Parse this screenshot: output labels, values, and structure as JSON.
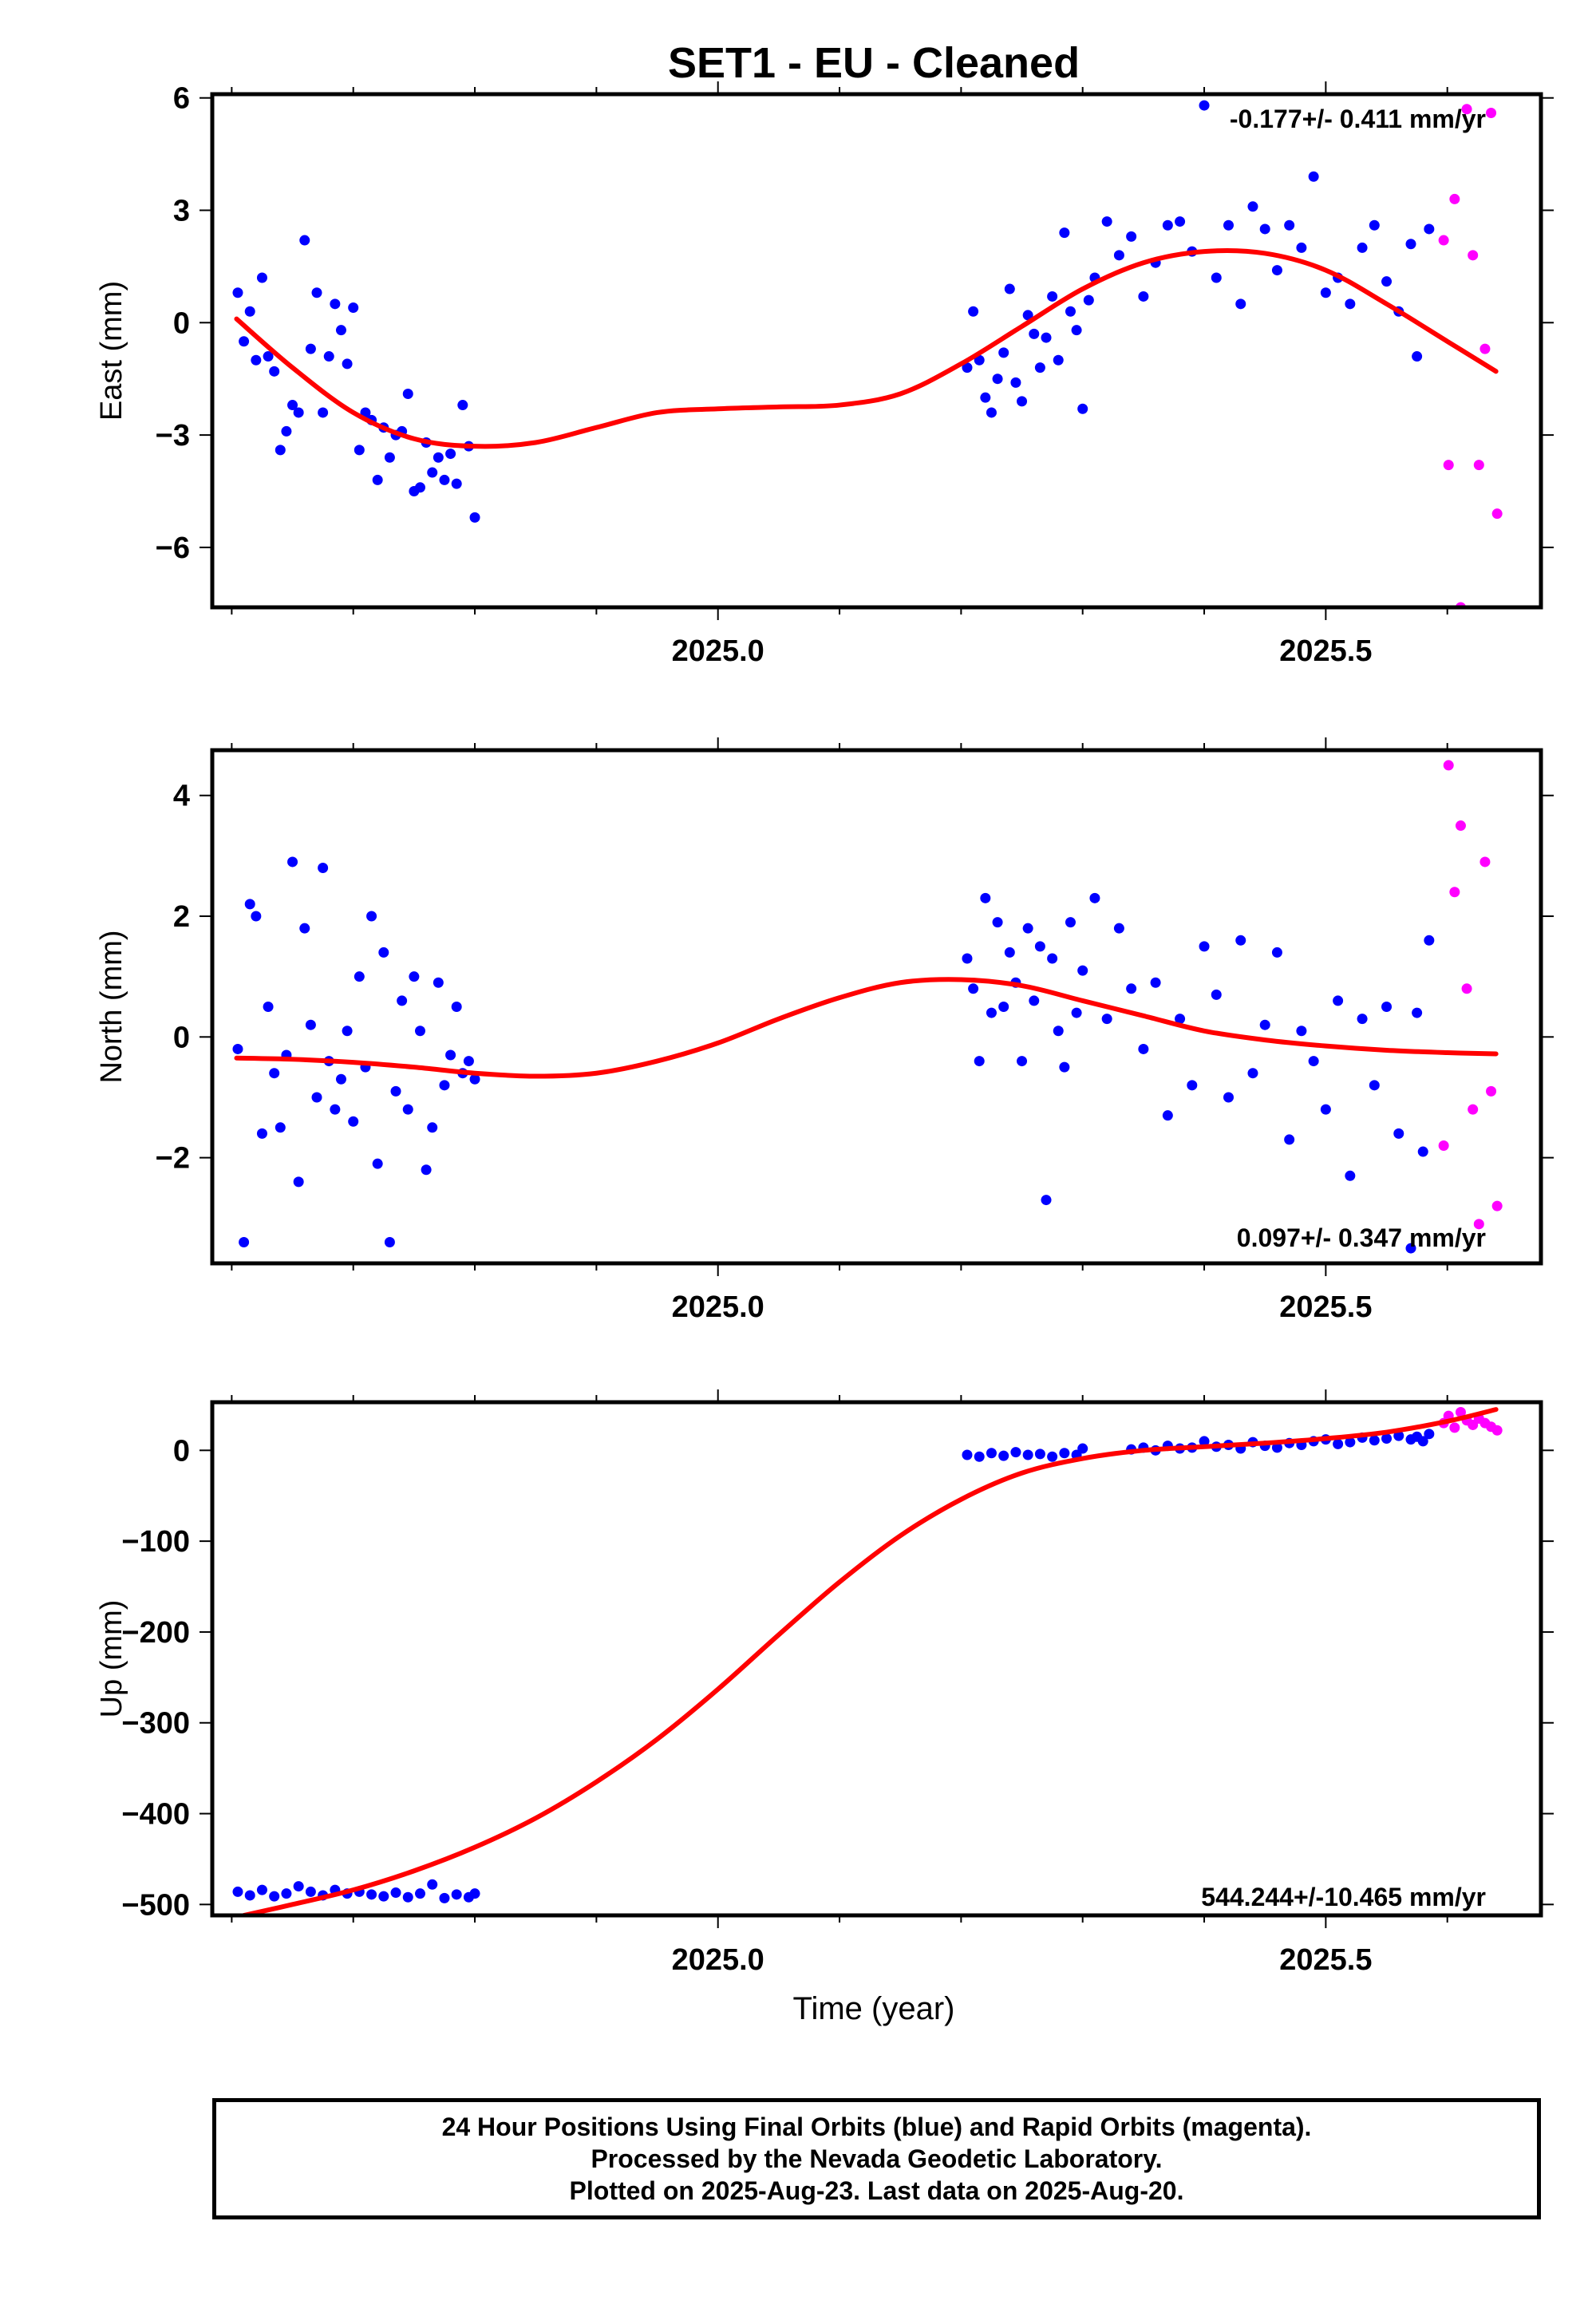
{
  "figure_title": "SET1  - EU - Cleaned",
  "xlabel": "Time (year)",
  "footer": {
    "line1": "24 Hour Positions Using Final Orbits (blue) and Rapid Orbits (magenta).",
    "line2": "Processed by the Nevada Geodetic Laboratory.",
    "line3": "Plotted on 2025-Aug-23. Last data on 2025-Aug-20."
  },
  "colors": {
    "final": "#0000ff",
    "rapid": "#ff00ff",
    "fit": "#ff0000",
    "frame": "#000000"
  },
  "chart_data": [
    {
      "type": "scatter",
      "name": "east",
      "ylabel": "East (mm)",
      "rate_text": "-0.177+/- 0.411 mm/yr",
      "xlim": [
        2024.584,
        2025.677
      ],
      "ylim": [
        -7.6,
        6.1
      ],
      "xticks": [
        "2025.0",
        "2025.5"
      ],
      "yticks": [
        "6",
        "3",
        "0",
        "−3",
        "−6"
      ],
      "ytick_values": [
        6,
        3,
        0,
        -3,
        -6
      ],
      "fit_curve": {
        "x": [
          2024.604,
          2024.65,
          2024.7,
          2024.75,
          2024.8,
          2024.85,
          2024.9,
          2024.95,
          2025.0,
          2025.05,
          2025.1,
          2025.15,
          2025.2,
          2025.25,
          2025.3,
          2025.35,
          2025.4,
          2025.45,
          2025.5,
          2025.55,
          2025.6,
          2025.64
        ],
        "y": [
          0.1,
          -1.2,
          -2.4,
          -3.1,
          -3.3,
          -3.2,
          -2.8,
          -2.4,
          -2.3,
          -2.25,
          -2.2,
          -1.9,
          -1.1,
          -0.1,
          0.9,
          1.6,
          1.9,
          1.85,
          1.4,
          0.5,
          -0.5,
          -1.3
        ]
      },
      "final": {
        "x": [
          2024.605,
          2024.61,
          2024.615,
          2024.62,
          2024.625,
          2024.63,
          2024.635,
          2024.64,
          2024.645,
          2024.65,
          2024.655,
          2024.66,
          2024.665,
          2024.67,
          2024.675,
          2024.68,
          2024.685,
          2024.69,
          2024.695,
          2024.7,
          2024.705,
          2024.71,
          2024.715,
          2024.72,
          2024.725,
          2024.73,
          2024.735,
          2024.74,
          2024.745,
          2024.75,
          2024.755,
          2024.76,
          2024.765,
          2024.77,
          2024.775,
          2024.78,
          2024.785,
          2024.79,
          2024.795,
          2024.8,
          2025.205,
          2025.21,
          2025.215,
          2025.22,
          2025.225,
          2025.23,
          2025.235,
          2025.24,
          2025.245,
          2025.25,
          2025.255,
          2025.26,
          2025.265,
          2025.27,
          2025.275,
          2025.28,
          2025.285,
          2025.29,
          2025.295,
          2025.3,
          2025.305,
          2025.31,
          2025.32,
          2025.33,
          2025.34,
          2025.35,
          2025.36,
          2025.37,
          2025.38,
          2025.39,
          2025.4,
          2025.41,
          2025.42,
          2025.43,
          2025.44,
          2025.45,
          2025.46,
          2025.47,
          2025.48,
          2025.49,
          2025.5,
          2025.51,
          2025.52,
          2025.53,
          2025.54,
          2025.55,
          2025.56,
          2025.57,
          2025.575,
          2025.585
        ],
        "y": [
          0.8,
          -0.5,
          0.3,
          -1.0,
          1.2,
          -0.9,
          -1.3,
          -3.4,
          -2.9,
          -2.2,
          -2.4,
          2.2,
          -0.7,
          0.8,
          -2.4,
          -0.9,
          0.5,
          -0.2,
          -1.1,
          0.4,
          -3.4,
          -2.4,
          -2.6,
          -4.2,
          -2.8,
          -3.6,
          -3.0,
          -2.9,
          -1.9,
          -4.5,
          -4.4,
          -3.2,
          -4.0,
          -3.6,
          -4.2,
          -3.5,
          -4.3,
          -2.2,
          -3.3,
          -5.2,
          -1.2,
          0.3,
          -1.0,
          -2.0,
          -2.4,
          -1.5,
          -0.8,
          0.9,
          -1.6,
          -2.1,
          0.2,
          -0.3,
          -1.2,
          -0.4,
          0.7,
          -1.0,
          2.4,
          0.3,
          -0.2,
          -2.3,
          0.6,
          1.2,
          2.7,
          1.8,
          2.3,
          0.7,
          1.6,
          2.6,
          2.7,
          1.9,
          5.8,
          1.2,
          2.6,
          0.5,
          3.1,
          2.5,
          1.4,
          2.6,
          2.0,
          3.9,
          0.8,
          1.2,
          0.5,
          2.0,
          2.6,
          1.1,
          0.3,
          2.1,
          -0.9,
          2.5
        ]
      },
      "rapid": {
        "x": [
          2025.597,
          2025.601,
          2025.606,
          2025.611,
          2025.616,
          2025.621,
          2025.626,
          2025.631,
          2025.636,
          2025.641
        ],
        "y": [
          2.2,
          -3.8,
          3.3,
          -7.6,
          5.7,
          1.8,
          -3.8,
          -0.7,
          5.6,
          -5.1
        ]
      }
    },
    {
      "type": "scatter",
      "name": "north",
      "ylabel": "North (mm)",
      "rate_text": "0.097+/- 0.347 mm/yr",
      "xlim": [
        2024.584,
        2025.677
      ],
      "ylim": [
        -3.75,
        4.75
      ],
      "xticks": [
        "2025.0",
        "2025.5"
      ],
      "yticks": [
        "4",
        "2",
        "0",
        "−2"
      ],
      "ytick_values": [
        4,
        2,
        0,
        -2
      ],
      "fit_curve": {
        "x": [
          2024.604,
          2024.65,
          2024.7,
          2024.75,
          2024.8,
          2024.85,
          2024.9,
          2024.95,
          2025.0,
          2025.05,
          2025.1,
          2025.15,
          2025.2,
          2025.25,
          2025.3,
          2025.35,
          2025.4,
          2025.45,
          2025.5,
          2025.55,
          2025.6,
          2025.64
        ],
        "y": [
          -0.35,
          -0.37,
          -0.42,
          -0.5,
          -0.6,
          -0.65,
          -0.6,
          -0.4,
          -0.1,
          0.3,
          0.65,
          0.9,
          0.95,
          0.85,
          0.6,
          0.35,
          0.1,
          -0.05,
          -0.15,
          -0.22,
          -0.26,
          -0.28
        ]
      },
      "final": {
        "x": [
          2024.605,
          2024.61,
          2024.615,
          2024.62,
          2024.625,
          2024.63,
          2024.635,
          2024.64,
          2024.645,
          2024.65,
          2024.655,
          2024.66,
          2024.665,
          2024.67,
          2024.675,
          2024.68,
          2024.685,
          2024.69,
          2024.695,
          2024.7,
          2024.705,
          2024.71,
          2024.715,
          2024.72,
          2024.725,
          2024.73,
          2024.735,
          2024.74,
          2024.745,
          2024.75,
          2024.755,
          2024.76,
          2024.765,
          2024.77,
          2024.775,
          2024.78,
          2024.785,
          2024.79,
          2024.795,
          2024.8,
          2025.205,
          2025.21,
          2025.215,
          2025.22,
          2025.225,
          2025.23,
          2025.235,
          2025.24,
          2025.245,
          2025.25,
          2025.255,
          2025.26,
          2025.265,
          2025.27,
          2025.275,
          2025.28,
          2025.285,
          2025.29,
          2025.295,
          2025.3,
          2025.31,
          2025.32,
          2025.33,
          2025.34,
          2025.35,
          2025.36,
          2025.37,
          2025.38,
          2025.39,
          2025.4,
          2025.41,
          2025.42,
          2025.43,
          2025.44,
          2025.45,
          2025.46,
          2025.47,
          2025.48,
          2025.49,
          2025.5,
          2025.51,
          2025.52,
          2025.53,
          2025.54,
          2025.55,
          2025.56,
          2025.57,
          2025.575,
          2025.58,
          2025.585
        ],
        "y": [
          -0.2,
          -3.4,
          2.2,
          2.0,
          -1.6,
          0.5,
          -0.6,
          -1.5,
          -0.3,
          2.9,
          -2.4,
          1.8,
          0.2,
          -1.0,
          2.8,
          -0.4,
          -1.2,
          -0.7,
          0.1,
          -1.4,
          1.0,
          -0.5,
          2.0,
          -2.1,
          1.4,
          -3.4,
          -0.9,
          0.6,
          -1.2,
          1.0,
          0.1,
          -2.2,
          -1.5,
          0.9,
          -0.8,
          -0.3,
          0.5,
          -0.6,
          -0.4,
          -0.7,
          1.3,
          0.8,
          -0.4,
          2.3,
          0.4,
          1.9,
          0.5,
          1.4,
          0.9,
          -0.4,
          1.8,
          0.6,
          1.5,
          -2.7,
          1.3,
          0.1,
          -0.5,
          1.9,
          0.4,
          1.1,
          2.3,
          0.3,
          1.8,
          0.8,
          -0.2,
          0.9,
          -1.3,
          0.3,
          -0.8,
          1.5,
          0.7,
          -1.0,
          1.6,
          -0.6,
          0.2,
          1.4,
          -1.7,
          0.1,
          -0.4,
          -1.2,
          0.6,
          -2.3,
          0.3,
          -0.8,
          0.5,
          -1.6,
          -3.5,
          0.4,
          -1.9,
          1.6
        ]
      },
      "rapid": {
        "x": [
          2025.597,
          2025.601,
          2025.606,
          2025.611,
          2025.616,
          2025.621,
          2025.626,
          2025.631,
          2025.636,
          2025.641
        ],
        "y": [
          -1.8,
          4.5,
          2.4,
          3.5,
          0.8,
          -1.2,
          -3.1,
          2.9,
          -0.9,
          -2.8
        ]
      }
    },
    {
      "type": "scatter",
      "name": "up",
      "ylabel": "Up (mm)",
      "rate_text": "544.244+/-10.465 mm/yr",
      "xlim": [
        2024.584,
        2025.677
      ],
      "ylim": [
        -512,
        53
      ],
      "xticks": [
        "2025.0",
        "2025.5"
      ],
      "yticks": [
        "0",
        "−100",
        "−200",
        "−300",
        "−400",
        "−500"
      ],
      "ytick_values": [
        0,
        -100,
        -200,
        -300,
        -400,
        -500
      ],
      "fit_curve": {
        "x": [
          2024.61,
          2024.65,
          2024.7,
          2024.75,
          2024.8,
          2024.85,
          2024.9,
          2024.95,
          2025.0,
          2025.05,
          2025.1,
          2025.15,
          2025.2,
          2025.25,
          2025.3,
          2025.35,
          2025.4,
          2025.45,
          2025.5,
          2025.55,
          2025.6,
          2025.64
        ],
        "y": [
          -512,
          -500,
          -484,
          -463,
          -437,
          -405,
          -365,
          -318,
          -263,
          -203,
          -145,
          -94,
          -54,
          -25,
          -9,
          0,
          4,
          8,
          13,
          20,
          32,
          45
        ]
      },
      "final": {
        "x": [
          2024.605,
          2024.615,
          2024.625,
          2024.635,
          2024.645,
          2024.655,
          2024.665,
          2024.675,
          2024.685,
          2024.695,
          2024.705,
          2024.715,
          2024.725,
          2024.735,
          2024.745,
          2024.755,
          2024.765,
          2024.775,
          2024.785,
          2024.795,
          2024.8,
          2025.205,
          2025.215,
          2025.225,
          2025.235,
          2025.245,
          2025.255,
          2025.265,
          2025.275,
          2025.285,
          2025.295,
          2025.3,
          2025.34,
          2025.35,
          2025.36,
          2025.37,
          2025.38,
          2025.39,
          2025.4,
          2025.41,
          2025.42,
          2025.43,
          2025.44,
          2025.45,
          2025.46,
          2025.47,
          2025.48,
          2025.49,
          2025.5,
          2025.51,
          2025.52,
          2025.53,
          2025.54,
          2025.55,
          2025.56,
          2025.57,
          2025.575,
          2025.58,
          2025.585
        ],
        "y": [
          -486,
          -490,
          -484,
          -491,
          -488,
          -480,
          -486,
          -490,
          -484,
          -488,
          -486,
          -489,
          -491,
          -487,
          -492,
          -488,
          -478,
          -493,
          -489,
          -492,
          -488,
          -5,
          -7,
          -3,
          -6,
          -2,
          -5,
          -4,
          -7,
          -3,
          -5,
          2,
          1,
          3,
          0,
          5,
          2,
          3,
          10,
          4,
          6,
          2,
          9,
          5,
          3,
          8,
          6,
          10,
          12,
          7,
          9,
          14,
          11,
          13,
          16,
          12,
          15,
          10,
          18
        ]
      },
      "rapid": {
        "x": [
          2025.597,
          2025.601,
          2025.606,
          2025.611,
          2025.616,
          2025.621,
          2025.626,
          2025.631,
          2025.636,
          2025.641
        ],
        "y": [
          30,
          38,
          25,
          42,
          33,
          28,
          35,
          30,
          26,
          22
        ]
      }
    }
  ]
}
